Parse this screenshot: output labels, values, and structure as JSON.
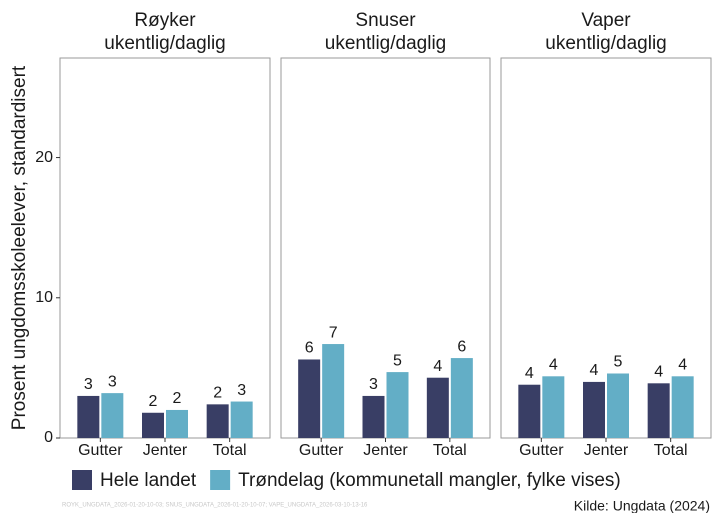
{
  "y_label": "Prosent ungdomsskoleelever, standardisert",
  "caption": "Kilde: Ungdata (2024)",
  "note": "ROYK_UNGDATA_2026-01-20-10-03; SNUS_UNGDATA_2026-01-20-10-07; VAPE_UNGDATA_2026-03-10-13-16",
  "chart_data": [
    {
      "type": "bar",
      "title": [
        "Røyker",
        "ukentlig/daglig"
      ],
      "categories": [
        "Gutter",
        "Jenter",
        "Total"
      ],
      "series": [
        {
          "name": "Hele landet",
          "color": "#393e65",
          "values": [
            3.0,
            1.8,
            2.4
          ],
          "value_labels": [
            "3",
            "2",
            "2"
          ]
        },
        {
          "name": "Trøndelag (kommunetall mangler, fylke vises)",
          "color": "#63aec6",
          "values": [
            3.2,
            2.0,
            2.6
          ],
          "value_labels": [
            "3",
            "2",
            "3"
          ]
        }
      ],
      "ylim": [
        0,
        27.1
      ],
      "yticks": [
        0,
        10,
        20
      ]
    },
    {
      "type": "bar",
      "title": [
        "Snuser",
        "ukentlig/daglig"
      ],
      "categories": [
        "Gutter",
        "Jenter",
        "Total"
      ],
      "series": [
        {
          "name": "Hele landet",
          "color": "#393e65",
          "values": [
            5.6,
            3.0,
            4.3
          ],
          "value_labels": [
            "6",
            "3",
            "4"
          ]
        },
        {
          "name": "Trøndelag (kommunetall mangler, fylke vises)",
          "color": "#63aec6",
          "values": [
            6.7,
            4.7,
            5.7
          ],
          "value_labels": [
            "7",
            "5",
            "6"
          ]
        }
      ],
      "ylim": [
        0,
        27.1
      ]
    },
    {
      "type": "bar",
      "title": [
        "Vaper",
        "ukentlig/daglig"
      ],
      "categories": [
        "Gutter",
        "Jenter",
        "Total"
      ],
      "series": [
        {
          "name": "Hele landet",
          "color": "#393e65",
          "values": [
            3.8,
            4.0,
            3.9
          ],
          "value_labels": [
            "4",
            "4",
            "4"
          ]
        },
        {
          "name": "Trøndelag (kommunetall mangler, fylke vises)",
          "color": "#63aec6",
          "values": [
            4.4,
            4.6,
            4.4
          ],
          "value_labels": [
            "4",
            "5",
            "4"
          ]
        }
      ],
      "ylim": [
        0,
        27.1
      ]
    }
  ]
}
